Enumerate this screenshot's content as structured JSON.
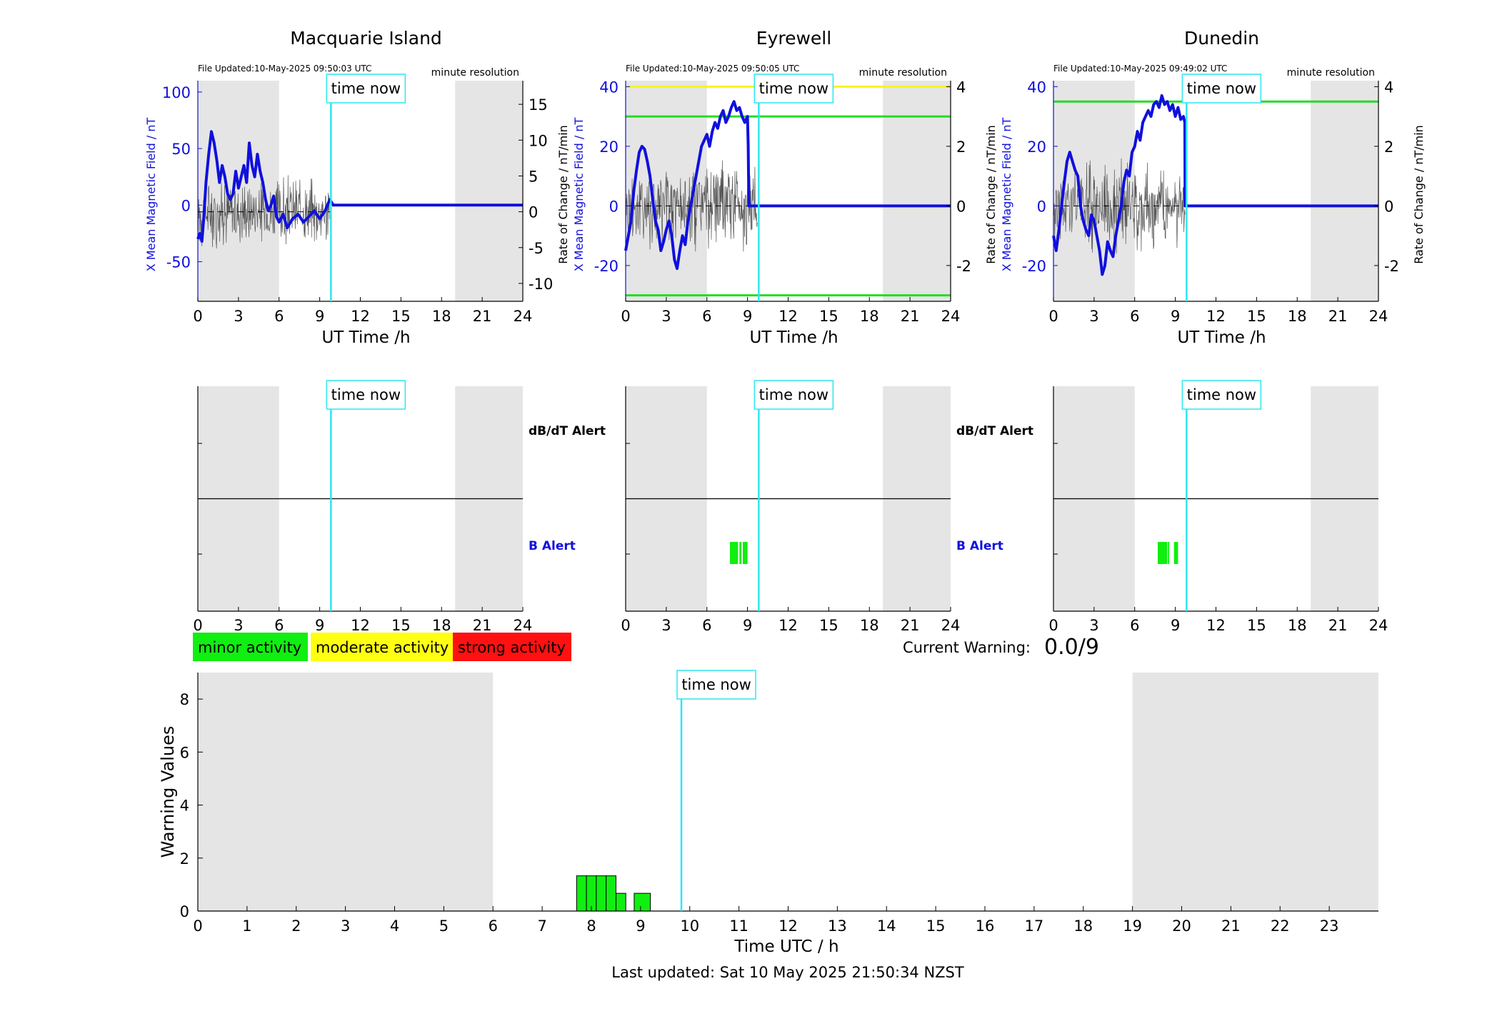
{
  "stations": [
    {
      "name": "Macquarie Island",
      "file_updated": "File Updated:10-May-2025 09:50:03 UTC",
      "resolution": "minute resolution",
      "left_ylabel": "X Mean Magnetic Field / nT",
      "right_ylabel": "Rate of Change / nT/min",
      "left_ylim": [
        -85,
        110
      ],
      "left_yticks": [
        -50,
        0,
        50,
        100
      ],
      "right_ylim": [
        -12.5,
        18.3
      ],
      "right_yticks": [
        -10,
        -5,
        0,
        5,
        10,
        15
      ],
      "thresholds": [],
      "xlabel": "UT Time /h",
      "field_series": {
        "t": [
          0,
          0.15,
          0.3,
          0.45,
          0.6,
          0.8,
          1.0,
          1.2,
          1.4,
          1.6,
          1.8,
          2.0,
          2.2,
          2.4,
          2.6,
          2.8,
          3.0,
          3.2,
          3.4,
          3.6,
          3.8,
          4.0,
          4.2,
          4.4,
          4.6,
          4.8,
          5.0,
          5.2,
          5.4,
          5.6,
          5.8,
          6.0,
          6.3,
          6.6,
          7.0,
          7.4,
          7.8,
          8.2,
          8.6,
          9.0,
          9.4,
          9.75,
          10,
          24
        ],
        "x": [
          -30,
          -25,
          -32,
          -10,
          20,
          45,
          65,
          55,
          40,
          20,
          35,
          25,
          10,
          5,
          10,
          30,
          15,
          25,
          35,
          20,
          55,
          35,
          25,
          45,
          30,
          20,
          5,
          -5,
          0,
          8,
          -10,
          -15,
          -8,
          -20,
          -12,
          -8,
          -15,
          -10,
          -5,
          -12,
          -5,
          5,
          0,
          0
        ]
      },
      "alert_bars": [],
      "alert_labels": {
        "top": "dB/dT Alert",
        "bottom": "B Alert"
      }
    },
    {
      "name": "Eyrewell",
      "file_updated": "File Updated:10-May-2025 09:50:05 UTC",
      "resolution": "minute resolution",
      "left_ylabel": "X Mean Magnetic Field / nT",
      "right_ylabel": "Rate of Change / nT/min",
      "left_ylim": [
        -32,
        42
      ],
      "left_yticks": [
        -20,
        0,
        20,
        40
      ],
      "right_ylim": [
        -3.2,
        4.2
      ],
      "right_yticks": [
        -2,
        0,
        2,
        4
      ],
      "thresholds": [
        {
          "value": 40,
          "color": "#f5f520"
        },
        {
          "value": 30,
          "color": "#22dd22"
        },
        {
          "value": -30,
          "color": "#22dd22"
        }
      ],
      "xlabel": "UT Time /h",
      "field_series": {
        "t": [
          0,
          0.2,
          0.4,
          0.6,
          0.8,
          1.0,
          1.2,
          1.4,
          1.6,
          1.8,
          2.0,
          2.2,
          2.4,
          2.6,
          2.8,
          3.0,
          3.2,
          3.4,
          3.6,
          3.8,
          4.0,
          4.2,
          4.4,
          4.6,
          4.8,
          5.0,
          5.2,
          5.4,
          5.6,
          5.8,
          6.0,
          6.2,
          6.4,
          6.6,
          6.8,
          7.0,
          7.2,
          7.4,
          7.6,
          7.8,
          8.0,
          8.2,
          8.4,
          8.6,
          8.8,
          9.0,
          9.05,
          9.1,
          24
        ],
        "x": [
          -15,
          -10,
          -5,
          5,
          12,
          18,
          20,
          19,
          15,
          10,
          2,
          -5,
          -8,
          -15,
          -12,
          -8,
          -5,
          -10,
          -18,
          -21,
          -15,
          -10,
          -13,
          -5,
          0,
          5,
          10,
          15,
          20,
          22,
          24,
          20,
          25,
          28,
          26,
          30,
          32,
          28,
          30,
          33,
          35,
          32,
          33,
          30,
          28,
          30,
          20,
          0,
          0
        ]
      },
      "alert_bars": [
        [
          7.7,
          8.3
        ],
        [
          8.4,
          8.55
        ],
        [
          8.65,
          9.0
        ]
      ],
      "alert_labels": {
        "top": "dB/dT Alert",
        "bottom": "B Alert"
      }
    },
    {
      "name": "Dunedin",
      "file_updated": "File Updated:10-May-2025 09:49:02 UTC",
      "resolution": "minute resolution",
      "left_ylabel": "X Mean Magnetic Field / nT",
      "right_ylabel": "Rate of Change / nT/min",
      "left_ylim": [
        -32,
        42
      ],
      "left_yticks": [
        -20,
        0,
        20,
        40
      ],
      "right_ylim": [
        -3.2,
        4.2
      ],
      "right_yticks": [
        -2,
        0,
        2,
        4
      ],
      "thresholds": [
        {
          "value": 35,
          "color": "#22dd22"
        }
      ],
      "xlabel": "UT Time /h",
      "field_series": {
        "t": [
          0,
          0.2,
          0.4,
          0.6,
          0.8,
          1.0,
          1.2,
          1.4,
          1.6,
          1.8,
          2.0,
          2.2,
          2.4,
          2.6,
          2.8,
          3.0,
          3.2,
          3.4,
          3.6,
          3.8,
          4.0,
          4.2,
          4.4,
          4.6,
          4.8,
          5.0,
          5.2,
          5.4,
          5.6,
          5.8,
          6.0,
          6.2,
          6.4,
          6.6,
          6.8,
          7.0,
          7.2,
          7.4,
          7.6,
          7.8,
          8.0,
          8.2,
          8.4,
          8.6,
          8.8,
          9.0,
          9.2,
          9.4,
          9.6,
          9.7,
          9.72,
          24
        ],
        "x": [
          -10,
          -15,
          -8,
          0,
          8,
          15,
          18,
          15,
          12,
          10,
          0,
          -5,
          -8,
          -10,
          -3,
          -5,
          -10,
          -15,
          -23,
          -20,
          -12,
          -15,
          -17,
          -10,
          -5,
          0,
          8,
          12,
          10,
          18,
          20,
          25,
          22,
          28,
          30,
          32,
          30,
          34,
          35,
          33,
          37,
          34,
          35,
          32,
          34,
          30,
          33,
          29,
          30,
          28,
          0,
          0
        ]
      },
      "alert_bars": [
        [
          7.7,
          8.4
        ],
        [
          8.45,
          8.55
        ],
        [
          8.9,
          9.2
        ]
      ],
      "alert_labels": {
        "top": "",
        "bottom": ""
      }
    }
  ],
  "time_now_label": "time now",
  "time_now_hours": 9.83,
  "night_shading": {
    "start": [
      0,
      6
    ],
    "end": [
      19,
      24
    ]
  },
  "x_ticks": [
    0,
    3,
    6,
    9,
    12,
    15,
    18,
    21,
    24
  ],
  "legend": [
    {
      "label": "minor activity",
      "color": "#11ee11"
    },
    {
      "label": "moderate activity",
      "color": "#ffff11"
    },
    {
      "label": "strong activity",
      "color": "#ff1111"
    }
  ],
  "current_warning": {
    "label": "Current Warning:",
    "value": "0.0/9"
  },
  "chart_data": {
    "type": "bar",
    "ylabel": "Warning Values",
    "xlabel": "Time UTC / h",
    "ylim": [
      0,
      9
    ],
    "xlim": [
      0,
      24
    ],
    "yticks": [
      0,
      2,
      4,
      6,
      8
    ],
    "xticks": [
      0,
      1,
      2,
      3,
      4,
      5,
      6,
      7,
      8,
      9,
      10,
      11,
      12,
      13,
      14,
      15,
      16,
      17,
      18,
      19,
      20,
      21,
      22,
      23
    ],
    "bars": [
      {
        "start": 7.7,
        "end": 7.9,
        "value": 1.33
      },
      {
        "start": 7.9,
        "end": 8.1,
        "value": 1.33
      },
      {
        "start": 8.1,
        "end": 8.3,
        "value": 1.33
      },
      {
        "start": 8.3,
        "end": 8.5,
        "value": 1.33
      },
      {
        "start": 8.5,
        "end": 8.7,
        "value": 0.67
      },
      {
        "start": 8.87,
        "end": 9.2,
        "value": 0.67
      }
    ],
    "bar_color": "#11ee11"
  },
  "footer": "Last updated: Sat 10 May 2025 21:50:34 NZST"
}
